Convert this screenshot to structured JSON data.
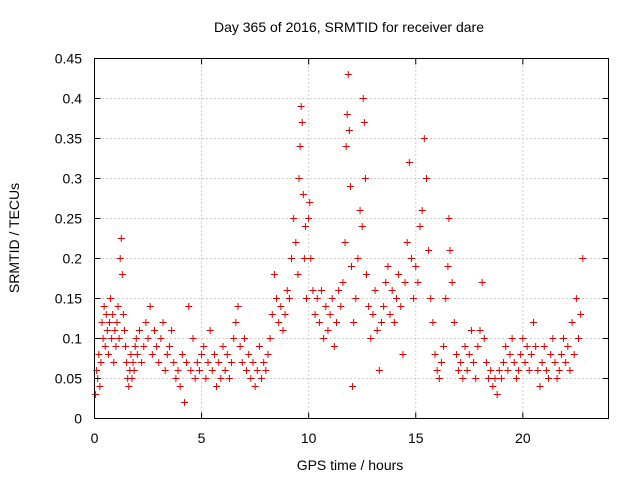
{
  "chart_data": {
    "type": "scatter",
    "title": "Day 365 of 2016, SRMTID for receiver dare",
    "xlabel": "GPS time / hours",
    "ylabel": "SRMTID / TECUs",
    "xlim": [
      0,
      24
    ],
    "ylim": [
      0,
      0.45
    ],
    "xticks": [
      0,
      5,
      10,
      15,
      20
    ],
    "xtick_labels": [
      "0",
      "5",
      "10",
      "15",
      "20"
    ],
    "yticks": [
      0,
      0.05,
      0.1,
      0.15,
      0.2,
      0.25,
      0.3,
      0.35,
      0.4,
      0.45
    ],
    "ytick_labels": [
      "0",
      "0.05",
      "0.1",
      "0.15",
      "0.2",
      "0.25",
      "0.3",
      "0.35",
      "0.4",
      "0.45"
    ],
    "grid": true,
    "marker": "plus",
    "color": "#e00000",
    "series": [
      {
        "name": "SRMTID",
        "points": [
          [
            0.05,
            0.03
          ],
          [
            0.1,
            0.06
          ],
          [
            0.15,
            0.05
          ],
          [
            0.2,
            0.08
          ],
          [
            0.25,
            0.04
          ],
          [
            0.3,
            0.07
          ],
          [
            0.35,
            0.12
          ],
          [
            0.4,
            0.1
          ],
          [
            0.45,
            0.14
          ],
          [
            0.5,
            0.09
          ],
          [
            0.55,
            0.13
          ],
          [
            0.6,
            0.11
          ],
          [
            0.65,
            0.08
          ],
          [
            0.7,
            0.12
          ],
          [
            0.75,
            0.15
          ],
          [
            0.8,
            0.1
          ],
          [
            0.85,
            0.13
          ],
          [
            0.9,
            0.07
          ],
          [
            0.95,
            0.11
          ],
          [
            1.0,
            0.09
          ],
          [
            1.05,
            0.12
          ],
          [
            1.1,
            0.14
          ],
          [
            1.15,
            0.1
          ],
          [
            1.2,
            0.2
          ],
          [
            1.25,
            0.225
          ],
          [
            1.3,
            0.18
          ],
          [
            1.35,
            0.13
          ],
          [
            1.4,
            0.11
          ],
          [
            1.45,
            0.09
          ],
          [
            1.5,
            0.07
          ],
          [
            1.55,
            0.05
          ],
          [
            1.6,
            0.04
          ],
          [
            1.65,
            0.06
          ],
          [
            1.7,
            0.08
          ],
          [
            1.75,
            0.05
          ],
          [
            1.8,
            0.07
          ],
          [
            1.85,
            0.06
          ],
          [
            1.9,
            0.09
          ],
          [
            1.95,
            0.1
          ],
          [
            2.0,
            0.08
          ],
          [
            2.1,
            0.11
          ],
          [
            2.2,
            0.07
          ],
          [
            2.3,
            0.09
          ],
          [
            2.4,
            0.12
          ],
          [
            2.5,
            0.1
          ],
          [
            2.6,
            0.14
          ],
          [
            2.7,
            0.08
          ],
          [
            2.8,
            0.11
          ],
          [
            2.9,
            0.09
          ],
          [
            3.0,
            0.07
          ],
          [
            3.1,
            0.1
          ],
          [
            3.2,
            0.12
          ],
          [
            3.3,
            0.06
          ],
          [
            3.4,
            0.08
          ],
          [
            3.5,
            0.09
          ],
          [
            3.6,
            0.11
          ],
          [
            3.7,
            0.07
          ],
          [
            3.8,
            0.05
          ],
          [
            3.9,
            0.06
          ],
          [
            4.0,
            0.04
          ],
          [
            4.1,
            0.08
          ],
          [
            4.2,
            0.02
          ],
          [
            4.3,
            0.07
          ],
          [
            4.4,
            0.14
          ],
          [
            4.5,
            0.06
          ],
          [
            4.6,
            0.1
          ],
          [
            4.7,
            0.05
          ],
          [
            4.8,
            0.07
          ],
          [
            4.9,
            0.06
          ],
          [
            5.0,
            0.08
          ],
          [
            5.1,
            0.09
          ],
          [
            5.2,
            0.05
          ],
          [
            5.3,
            0.07
          ],
          [
            5.4,
            0.11
          ],
          [
            5.5,
            0.06
          ],
          [
            5.6,
            0.08
          ],
          [
            5.7,
            0.04
          ],
          [
            5.8,
            0.07
          ],
          [
            5.9,
            0.05
          ],
          [
            6.0,
            0.09
          ],
          [
            6.1,
            0.06
          ],
          [
            6.2,
            0.08
          ],
          [
            6.3,
            0.05
          ],
          [
            6.4,
            0.07
          ],
          [
            6.5,
            0.1
          ],
          [
            6.6,
            0.12
          ],
          [
            6.7,
            0.14
          ],
          [
            6.8,
            0.09
          ],
          [
            6.9,
            0.07
          ],
          [
            7.0,
            0.1
          ],
          [
            7.1,
            0.06
          ],
          [
            7.2,
            0.08
          ],
          [
            7.3,
            0.05
          ],
          [
            7.4,
            0.07
          ],
          [
            7.5,
            0.04
          ],
          [
            7.6,
            0.06
          ],
          [
            7.7,
            0.09
          ],
          [
            7.8,
            0.05
          ],
          [
            7.9,
            0.07
          ],
          [
            8.0,
            0.06
          ],
          [
            8.1,
            0.08
          ],
          [
            8.2,
            0.1
          ],
          [
            8.3,
            0.13
          ],
          [
            8.4,
            0.18
          ],
          [
            8.5,
            0.15
          ],
          [
            8.6,
            0.12
          ],
          [
            8.7,
            0.14
          ],
          [
            8.8,
            0.11
          ],
          [
            8.9,
            0.13
          ],
          [
            9.0,
            0.16
          ],
          [
            9.1,
            0.15
          ],
          [
            9.2,
            0.2
          ],
          [
            9.3,
            0.25
          ],
          [
            9.4,
            0.22
          ],
          [
            9.5,
            0.18
          ],
          [
            9.55,
            0.3
          ],
          [
            9.6,
            0.34
          ],
          [
            9.65,
            0.39
          ],
          [
            9.7,
            0.37
          ],
          [
            9.75,
            0.28
          ],
          [
            9.8,
            0.2
          ],
          [
            9.85,
            0.24
          ],
          [
            9.9,
            0.15
          ],
          [
            10.0,
            0.25
          ],
          [
            10.05,
            0.27
          ],
          [
            10.1,
            0.2
          ],
          [
            10.2,
            0.16
          ],
          [
            10.3,
            0.13
          ],
          [
            10.4,
            0.15
          ],
          [
            10.5,
            0.12
          ],
          [
            10.6,
            0.16
          ],
          [
            10.7,
            0.1
          ],
          [
            10.8,
            0.14
          ],
          [
            10.9,
            0.11
          ],
          [
            11.0,
            0.13
          ],
          [
            11.1,
            0.15
          ],
          [
            11.2,
            0.09
          ],
          [
            11.3,
            0.12
          ],
          [
            11.4,
            0.16
          ],
          [
            11.5,
            0.14
          ],
          [
            11.6,
            0.17
          ],
          [
            11.7,
            0.22
          ],
          [
            11.75,
            0.34
          ],
          [
            11.8,
            0.38
          ],
          [
            11.85,
            0.43
          ],
          [
            11.9,
            0.36
          ],
          [
            11.95,
            0.29
          ],
          [
            12.0,
            0.19
          ],
          [
            12.05,
            0.04
          ],
          [
            12.1,
            0.12
          ],
          [
            12.2,
            0.15
          ],
          [
            12.3,
            0.2
          ],
          [
            12.4,
            0.26
          ],
          [
            12.5,
            0.24
          ],
          [
            12.55,
            0.4
          ],
          [
            12.6,
            0.37
          ],
          [
            12.65,
            0.3
          ],
          [
            12.7,
            0.18
          ],
          [
            12.8,
            0.14
          ],
          [
            12.9,
            0.1
          ],
          [
            13.0,
            0.13
          ],
          [
            13.1,
            0.16
          ],
          [
            13.2,
            0.11
          ],
          [
            13.3,
            0.06
          ],
          [
            13.4,
            0.12
          ],
          [
            13.5,
            0.14
          ],
          [
            13.6,
            0.17
          ],
          [
            13.7,
            0.19
          ],
          [
            13.8,
            0.13
          ],
          [
            13.9,
            0.16
          ],
          [
            14.0,
            0.12
          ],
          [
            14.1,
            0.15
          ],
          [
            14.2,
            0.18
          ],
          [
            14.3,
            0.14
          ],
          [
            14.4,
            0.08
          ],
          [
            14.5,
            0.17
          ],
          [
            14.6,
            0.22
          ],
          [
            14.7,
            0.32
          ],
          [
            14.8,
            0.2
          ],
          [
            14.9,
            0.15
          ],
          [
            15.0,
            0.19
          ],
          [
            15.1,
            0.17
          ],
          [
            15.2,
            0.24
          ],
          [
            15.3,
            0.26
          ],
          [
            15.4,
            0.35
          ],
          [
            15.5,
            0.3
          ],
          [
            15.6,
            0.21
          ],
          [
            15.7,
            0.15
          ],
          [
            15.8,
            0.12
          ],
          [
            15.9,
            0.08
          ],
          [
            16.0,
            0.06
          ],
          [
            16.1,
            0.05
          ],
          [
            16.2,
            0.07
          ],
          [
            16.3,
            0.09
          ],
          [
            16.4,
            0.15
          ],
          [
            16.5,
            0.19
          ],
          [
            16.55,
            0.25
          ],
          [
            16.6,
            0.21
          ],
          [
            16.7,
            0.17
          ],
          [
            16.8,
            0.12
          ],
          [
            16.9,
            0.08
          ],
          [
            17.0,
            0.06
          ],
          [
            17.1,
            0.07
          ],
          [
            17.2,
            0.05
          ],
          [
            17.3,
            0.09
          ],
          [
            17.4,
            0.06
          ],
          [
            17.5,
            0.08
          ],
          [
            17.6,
            0.11
          ],
          [
            17.7,
            0.07
          ],
          [
            17.8,
            0.05
          ],
          [
            17.9,
            0.09
          ],
          [
            18.0,
            0.11
          ],
          [
            18.1,
            0.17
          ],
          [
            18.2,
            0.1
          ],
          [
            18.3,
            0.07
          ],
          [
            18.4,
            0.05
          ],
          [
            18.5,
            0.06
          ],
          [
            18.6,
            0.04
          ],
          [
            18.7,
            0.05
          ],
          [
            18.8,
            0.03
          ],
          [
            18.9,
            0.06
          ],
          [
            19.0,
            0.05
          ],
          [
            19.1,
            0.07
          ],
          [
            19.2,
            0.09
          ],
          [
            19.3,
            0.06
          ],
          [
            19.4,
            0.08
          ],
          [
            19.5,
            0.1
          ],
          [
            19.6,
            0.07
          ],
          [
            19.7,
            0.05
          ],
          [
            19.8,
            0.06
          ],
          [
            19.9,
            0.08
          ],
          [
            20.0,
            0.1
          ],
          [
            20.1,
            0.07
          ],
          [
            20.2,
            0.09
          ],
          [
            20.3,
            0.06
          ],
          [
            20.4,
            0.08
          ],
          [
            20.5,
            0.12
          ],
          [
            20.6,
            0.09
          ],
          [
            20.7,
            0.06
          ],
          [
            20.8,
            0.04
          ],
          [
            20.9,
            0.07
          ],
          [
            21.0,
            0.09
          ],
          [
            21.1,
            0.06
          ],
          [
            21.2,
            0.05
          ],
          [
            21.3,
            0.08
          ],
          [
            21.4,
            0.1
          ],
          [
            21.5,
            0.07
          ],
          [
            21.6,
            0.05
          ],
          [
            21.7,
            0.06
          ],
          [
            21.8,
            0.08
          ],
          [
            21.9,
            0.1
          ],
          [
            22.0,
            0.07
          ],
          [
            22.1,
            0.09
          ],
          [
            22.2,
            0.06
          ],
          [
            22.3,
            0.12
          ],
          [
            22.4,
            0.08
          ],
          [
            22.5,
            0.15
          ],
          [
            22.6,
            0.1
          ],
          [
            22.7,
            0.13
          ],
          [
            22.8,
            0.2
          ]
        ]
      }
    ]
  }
}
